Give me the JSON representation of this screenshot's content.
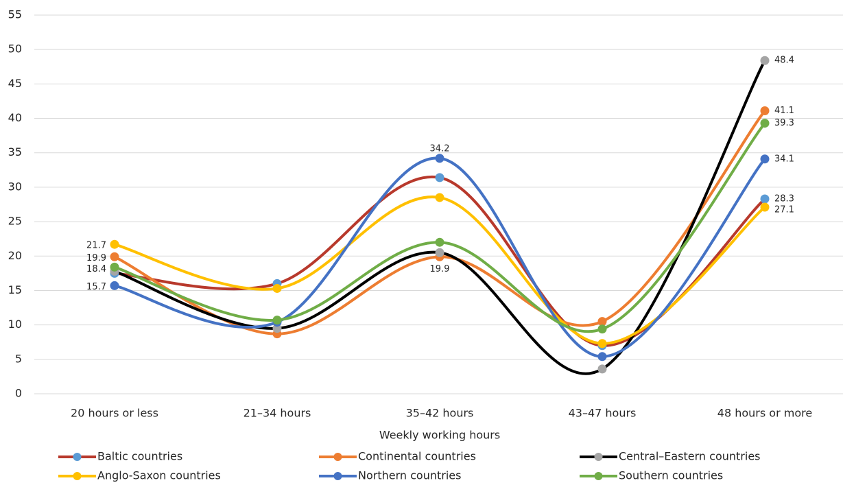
{
  "chart_data": {
    "type": "line",
    "x_label": "Weekly working hours",
    "categories": [
      "20 hours  or less",
      "21–34 hours",
      "35–42 hours",
      "43–47 hours",
      "48  hours or more"
    ],
    "ylim": [
      0,
      55
    ],
    "yticks": [
      0,
      5,
      10,
      15,
      20,
      25,
      30,
      35,
      40,
      45,
      50,
      55
    ],
    "grid": true,
    "smooth": true,
    "legend": "bottom",
    "series": [
      {
        "name": "Baltic countries",
        "color": "#b8392c",
        "marker_color": "#5b9bd5",
        "values": [
          17.5,
          16.0,
          31.4,
          7.0,
          28.3
        ],
        "value_labels": [
          null,
          null,
          null,
          null,
          "28.3"
        ]
      },
      {
        "name": "Continental countries",
        "color": "#ed7d31",
        "marker_color": "#ed7d31",
        "values": [
          19.9,
          8.7,
          19.9,
          10.5,
          41.1
        ],
        "value_labels": [
          "19.9",
          null,
          "19.9",
          null,
          "41.1"
        ]
      },
      {
        "name": "Central–Eastern countries",
        "color": "#000000",
        "marker_color": "#a5a5a5",
        "values": [
          17.8,
          9.5,
          20.5,
          3.6,
          48.4
        ],
        "value_labels": [
          null,
          null,
          null,
          null,
          "48.4"
        ]
      },
      {
        "name": "Anglo-Saxon countries",
        "color": "#ffc000",
        "marker_color": "#ffc000",
        "values": [
          21.7,
          15.3,
          28.5,
          7.3,
          27.1
        ],
        "value_labels": [
          "21.7",
          null,
          null,
          null,
          "27.1"
        ]
      },
      {
        "name": "Northern countries",
        "color": "#4472c4",
        "marker_color": "#4472c4",
        "values": [
          15.7,
          10.4,
          34.2,
          5.4,
          34.1
        ],
        "value_labels": [
          "15.7",
          null,
          "34.2",
          null,
          "34.1"
        ]
      },
      {
        "name": "Southern countries",
        "color": "#70ad47",
        "marker_color": "#70ad47",
        "values": [
          18.4,
          10.7,
          22.0,
          9.4,
          39.3
        ],
        "value_labels": [
          "18.4",
          null,
          null,
          null,
          "39.3"
        ]
      }
    ]
  }
}
